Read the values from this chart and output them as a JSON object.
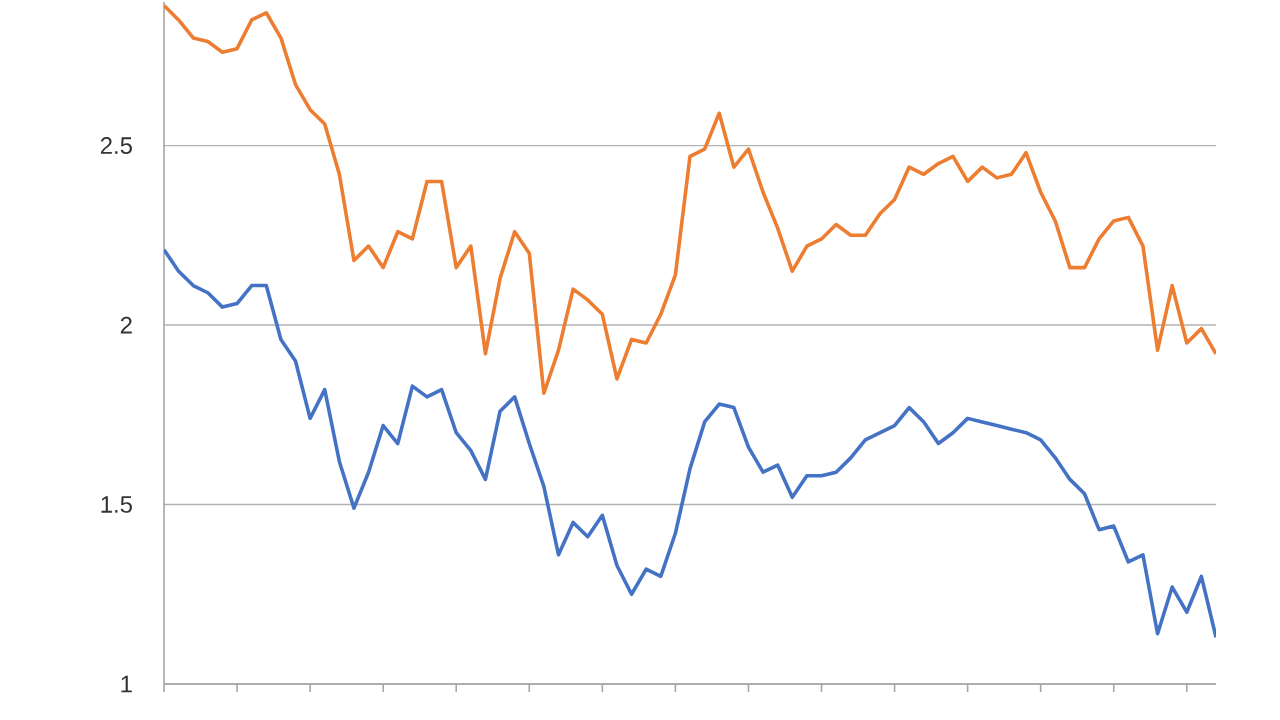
{
  "chart_data": {
    "type": "line",
    "categories": [
      null,
      null,
      null,
      null,
      null,
      null,
      null,
      null,
      null,
      null,
      null,
      null,
      null,
      null,
      null,
      null,
      null,
      null,
      null,
      null,
      null,
      null,
      null,
      null,
      null,
      null,
      null,
      null,
      null,
      null,
      null,
      null,
      null,
      null,
      null,
      null,
      null,
      null,
      null,
      null,
      null,
      null,
      null,
      null,
      null,
      null,
      null,
      null,
      null,
      null,
      null,
      null,
      null,
      null,
      null,
      null,
      null,
      null,
      null,
      null,
      null,
      null,
      null,
      null,
      null,
      null,
      null,
      null,
      null,
      null,
      null,
      null,
      null
    ],
    "ylim": [
      1,
      2.9
    ],
    "yticks": [
      1,
      1.5,
      2,
      2.5
    ],
    "grid": "y",
    "marker": "none",
    "line_style": "solid",
    "series": [
      {
        "color": "#ed7d31",
        "values": [
          2.89,
          2.85,
          2.8,
          2.79,
          2.76,
          2.77,
          2.85,
          2.87,
          2.8,
          2.67,
          2.6,
          2.56,
          2.42,
          2.18,
          2.22,
          2.16,
          2.26,
          2.24,
          2.4,
          2.4,
          2.16,
          2.22,
          1.92,
          2.13,
          2.26,
          2.2,
          1.81,
          1.93,
          2.1,
          2.07,
          2.03,
          1.85,
          1.96,
          1.95,
          2.03,
          2.14,
          2.47,
          2.49,
          2.59,
          2.44,
          2.49,
          2.37,
          2.27,
          2.15,
          2.22,
          2.24,
          2.28,
          2.25,
          2.25,
          2.31,
          2.35,
          2.44,
          2.42,
          2.45,
          2.47,
          2.4,
          2.44,
          2.41,
          2.42,
          2.48,
          2.37,
          2.29,
          2.16,
          2.16,
          2.24,
          2.29,
          2.3,
          2.22,
          1.93,
          2.11,
          1.95,
          1.99,
          1.92
        ]
      },
      {
        "color": "#4472c4",
        "values": [
          2.21,
          2.15,
          2.11,
          2.09,
          2.05,
          2.06,
          2.11,
          2.11,
          1.96,
          1.9,
          1.74,
          1.82,
          1.62,
          1.49,
          1.59,
          1.72,
          1.67,
          1.83,
          1.8,
          1.82,
          1.7,
          1.65,
          1.57,
          1.76,
          1.8,
          1.67,
          1.55,
          1.36,
          1.45,
          1.41,
          1.47,
          1.33,
          1.25,
          1.32,
          1.3,
          1.42,
          1.6,
          1.73,
          1.78,
          1.77,
          1.66,
          1.59,
          1.61,
          1.52,
          1.58,
          1.58,
          1.59,
          1.63,
          1.68,
          1.7,
          1.72,
          1.77,
          1.73,
          1.67,
          1.7,
          1.74,
          1.73,
          1.72,
          1.71,
          1.7,
          1.68,
          1.63,
          1.57,
          1.53,
          1.43,
          1.44,
          1.34,
          1.36,
          1.14,
          1.27,
          1.2,
          1.3,
          1.13
        ]
      }
    ]
  }
}
